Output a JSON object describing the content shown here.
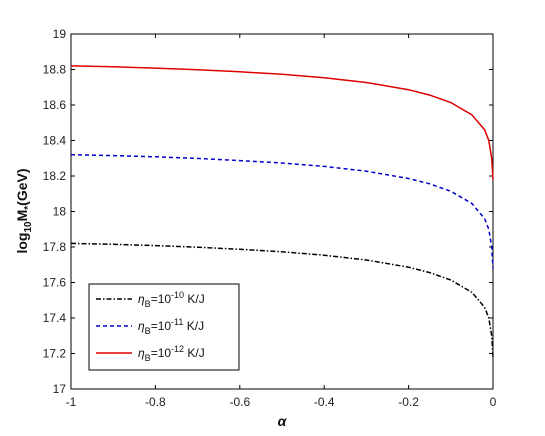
{
  "chart_data": {
    "type": "line",
    "xlabel": "α",
    "ylabel": {
      "base": "log",
      "sub": "10",
      "rest": "M",
      "star": "*",
      "unit": "(GeV)"
    },
    "xlim": [
      -1,
      0
    ],
    "ylim": [
      17,
      19
    ],
    "xticks": [
      -1,
      -0.8,
      -0.6,
      -0.4,
      -0.2,
      0
    ],
    "xtick_labels": [
      "-1",
      "-0.8",
      "-0.6",
      "-0.4",
      "-0.2",
      "0"
    ],
    "yticks": [
      17,
      17.2,
      17.4,
      17.6,
      17.8,
      18,
      18.2,
      18.4,
      18.6,
      18.8,
      19
    ],
    "ytick_labels": [
      "17",
      "17.2",
      "17.4",
      "17.6",
      "17.8",
      "18",
      "18.2",
      "18.4",
      "18.6",
      "18.8",
      "19"
    ],
    "grid": false,
    "legend_position": "bottom-left",
    "x": [
      -1,
      -0.9,
      -0.8,
      -0.7,
      -0.6,
      -0.5,
      -0.4,
      -0.3,
      -0.2,
      -0.15,
      -0.1,
      -0.05,
      -0.02,
      -0.01,
      -0.003,
      0
    ],
    "series": [
      {
        "name": {
          "sym": "η",
          "sub": "B",
          "eq": "=10",
          "exp": "-10",
          "unit": " K/J"
        },
        "color": "#000000",
        "dash": "dashdot",
        "values": [
          17.82,
          17.815,
          17.808,
          17.799,
          17.787,
          17.773,
          17.754,
          17.727,
          17.686,
          17.656,
          17.614,
          17.545,
          17.46,
          17.4,
          17.3,
          17.18
        ]
      },
      {
        "name": {
          "sym": "η",
          "sub": "B",
          "eq": "=10",
          "exp": "-11",
          "unit": " K/J"
        },
        "color": "#0000cc",
        "dash": "dashed",
        "values": [
          18.32,
          18.315,
          18.308,
          18.299,
          18.287,
          18.273,
          18.254,
          18.227,
          18.186,
          18.156,
          18.114,
          18.045,
          17.96,
          17.9,
          17.8,
          17.68
        ]
      },
      {
        "name": {
          "sym": "η",
          "sub": "B",
          "eq": "=10",
          "exp": "-12",
          "unit": " K/J"
        },
        "color": "#dd0000",
        "dash": "solid",
        "values": [
          18.82,
          18.815,
          18.808,
          18.799,
          18.787,
          18.773,
          18.754,
          18.727,
          18.686,
          18.656,
          18.614,
          18.545,
          18.46,
          18.4,
          18.3,
          18.18
        ]
      }
    ]
  }
}
